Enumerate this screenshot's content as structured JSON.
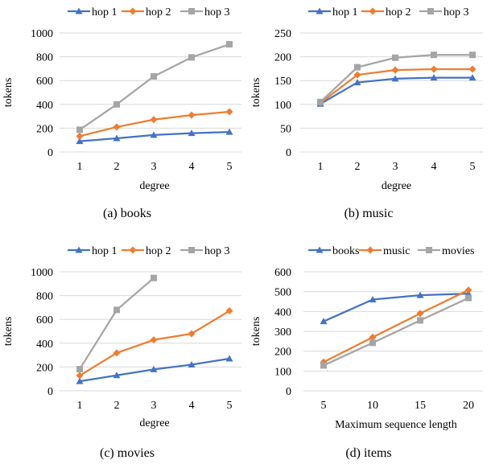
{
  "colors": {
    "blue": "#4472C4",
    "orange": "#ED7D31",
    "gray": "#A5A5A5",
    "grid": "#D9D9D9"
  },
  "chart_data": [
    {
      "type": "line",
      "caption": "(a)  books",
      "categories": [
        "1",
        "2",
        "3",
        "4",
        "5"
      ],
      "xlabel": "degree",
      "ylabel": "tokens",
      "ylim": [
        0,
        1000
      ],
      "yticks": [
        0,
        200,
        400,
        600,
        800,
        1000
      ],
      "grid": true,
      "legend": "top",
      "series": [
        {
          "name": "hop 1",
          "color": "blue",
          "marker": "triangle",
          "values": [
            90,
            115,
            143,
            158,
            168
          ]
        },
        {
          "name": "hop 2",
          "color": "orange",
          "marker": "diamond",
          "values": [
            133,
            210,
            272,
            310,
            338
          ]
        },
        {
          "name": "hop 3",
          "color": "gray",
          "marker": "square",
          "values": [
            187,
            400,
            635,
            795,
            905
          ]
        }
      ]
    },
    {
      "type": "line",
      "caption": "(b)  music",
      "categories": [
        "1",
        "2",
        "3",
        "4",
        "5"
      ],
      "xlabel": "degree",
      "ylabel": "tokens",
      "ylim": [
        0,
        250
      ],
      "yticks": [
        0,
        50,
        100,
        150,
        200,
        250
      ],
      "grid": true,
      "legend": "top",
      "series": [
        {
          "name": "hop 1",
          "color": "blue",
          "marker": "triangle",
          "values": [
            101,
            146,
            154,
            156,
            156
          ]
        },
        {
          "name": "hop 2",
          "color": "orange",
          "marker": "diamond",
          "values": [
            103,
            162,
            172,
            174,
            174
          ]
        },
        {
          "name": "hop 3",
          "color": "gray",
          "marker": "square",
          "values": [
            105,
            178,
            198,
            204,
            204
          ]
        }
      ]
    },
    {
      "type": "line",
      "caption": "(c)  movies",
      "categories": [
        "1",
        "2",
        "3",
        "4",
        "5"
      ],
      "xlabel": "degree",
      "ylabel": "tokens",
      "ylim": [
        0,
        1000
      ],
      "yticks": [
        0,
        200,
        400,
        600,
        800,
        1000
      ],
      "grid": true,
      "legend": "top",
      "series": [
        {
          "name": "hop 1",
          "color": "blue",
          "marker": "triangle",
          "values": [
            80,
            130,
            180,
            220,
            270
          ]
        },
        {
          "name": "hop 2",
          "color": "orange",
          "marker": "diamond",
          "values": [
            128,
            318,
            428,
            480,
            672
          ]
        },
        {
          "name": "hop 3",
          "color": "gray",
          "marker": "square",
          "values": [
            182,
            680,
            948,
            null,
            null
          ]
        }
      ]
    },
    {
      "type": "line",
      "caption": "(d)  items",
      "categories": [
        "5",
        "10",
        "15",
        "20"
      ],
      "xlabel": "Maximum sequence length",
      "ylabel": "tokens",
      "ylim": [
        0,
        600
      ],
      "yticks": [
        0,
        100,
        200,
        300,
        400,
        500,
        600
      ],
      "grid": true,
      "legend": "top",
      "series": [
        {
          "name": "books",
          "color": "blue",
          "marker": "triangle",
          "values": [
            350,
            460,
            482,
            490
          ]
        },
        {
          "name": "music",
          "color": "orange",
          "marker": "diamond",
          "values": [
            145,
            270,
            390,
            508
          ]
        },
        {
          "name": "movies",
          "color": "gray",
          "marker": "square",
          "values": [
            128,
            242,
            355,
            468
          ]
        }
      ]
    }
  ]
}
